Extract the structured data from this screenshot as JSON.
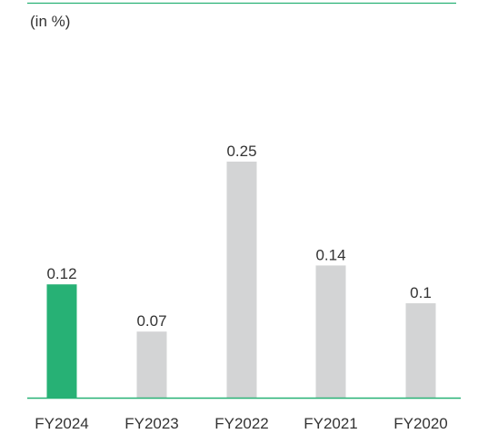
{
  "chart_data": {
    "type": "bar",
    "unit_label": "(in %)",
    "categories": [
      "FY2024",
      "FY2023",
      "FY2022",
      "FY2021",
      "FY2020"
    ],
    "values": [
      0.12,
      0.07,
      0.25,
      0.14,
      0.1
    ],
    "value_labels": [
      "0.12",
      "0.07",
      "0.25",
      "0.14",
      "0.1"
    ],
    "highlight_index": 0,
    "ylim": [
      0,
      0.25
    ],
    "grid": false,
    "colors": {
      "highlight": "#27b175",
      "bar": "#d3d4d5",
      "rule": "#27b175"
    }
  }
}
